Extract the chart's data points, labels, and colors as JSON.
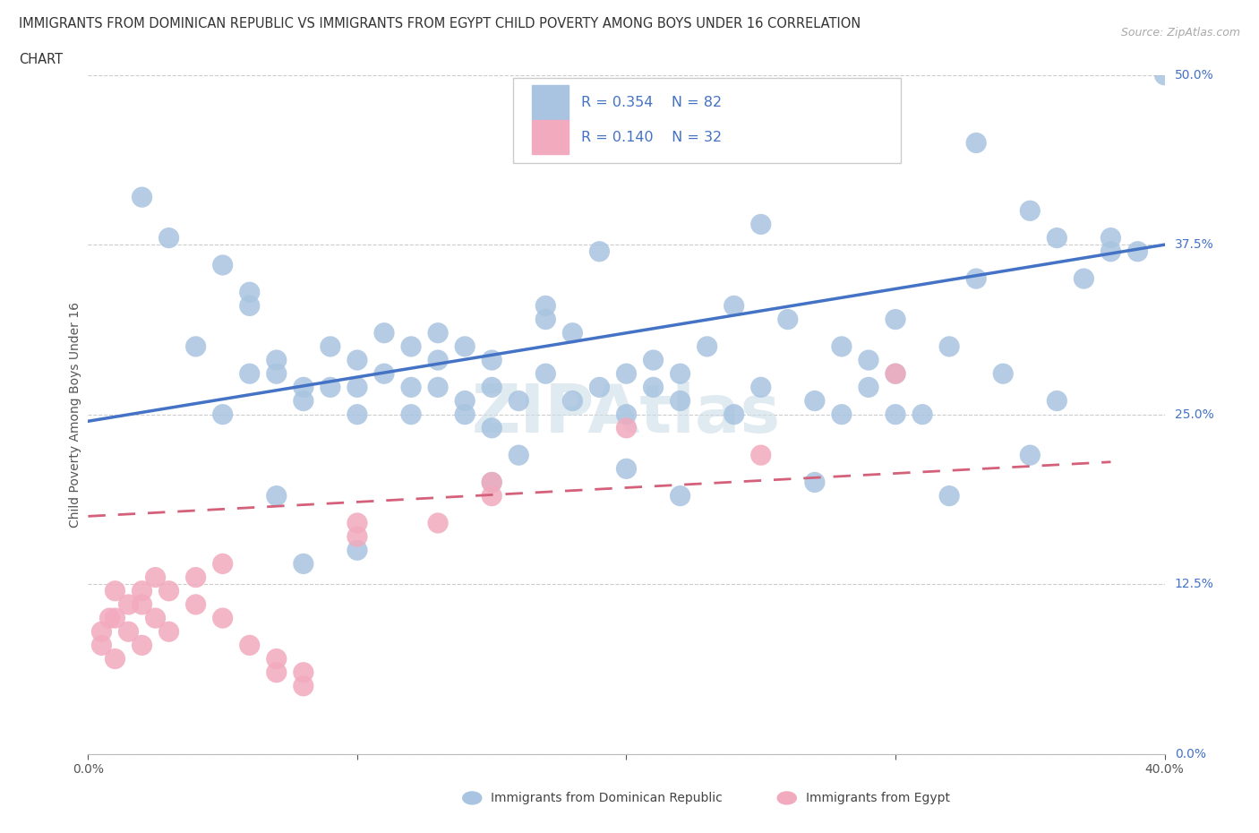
{
  "title_line1": "IMMIGRANTS FROM DOMINICAN REPUBLIC VS IMMIGRANTS FROM EGYPT CHILD POVERTY AMONG BOYS UNDER 16 CORRELATION",
  "title_line2": "CHART",
  "source": "Source: ZipAtlas.com",
  "ylabel": "Child Poverty Among Boys Under 16",
  "label_dr": "Immigrants from Dominican Republic",
  "label_eg": "Immigrants from Egypt",
  "R_dr": "0.354",
  "N_dr": "82",
  "R_eg": "0.140",
  "N_eg": "32",
  "xlim": [
    0.0,
    0.4
  ],
  "ylim": [
    0.0,
    0.5
  ],
  "ytick_vals": [
    0.0,
    0.125,
    0.25,
    0.375,
    0.5
  ],
  "ytick_labels": [
    "0.0%",
    "12.5%",
    "25.0%",
    "37.5%",
    "50.0%"
  ],
  "xtick_vals": [
    0.0,
    0.1,
    0.2,
    0.3,
    0.4
  ],
  "xtick_labels": [
    "0.0%",
    "",
    "",
    "",
    "40.0%"
  ],
  "color_dr": "#a8c4e0",
  "color_eg": "#f2aabe",
  "line_color_dr": "#4472c4",
  "line_color_eg": "#d4607a",
  "right_label_color": "#4472c4",
  "watermark_color": "#ccdde8",
  "dr_x": [
    0.02,
    0.03,
    0.04,
    0.05,
    0.06,
    0.06,
    0.07,
    0.07,
    0.08,
    0.08,
    0.09,
    0.09,
    0.1,
    0.1,
    0.11,
    0.11,
    0.12,
    0.12,
    0.12,
    0.13,
    0.13,
    0.14,
    0.14,
    0.15,
    0.15,
    0.15,
    0.16,
    0.17,
    0.17,
    0.18,
    0.18,
    0.19,
    0.2,
    0.2,
    0.21,
    0.21,
    0.22,
    0.22,
    0.23,
    0.24,
    0.25,
    0.26,
    0.27,
    0.28,
    0.29,
    0.3,
    0.3,
    0.31,
    0.32,
    0.33,
    0.34,
    0.35,
    0.36,
    0.37,
    0.38,
    0.39,
    0.4,
    0.33,
    0.15,
    0.22,
    0.27,
    0.32,
    0.1,
    0.05,
    0.08,
    0.28,
    0.35,
    0.2,
    0.13,
    0.07,
    0.17,
    0.24,
    0.29,
    0.06,
    0.19,
    0.14,
    0.25,
    0.36,
    0.1,
    0.3,
    0.38,
    0.16
  ],
  "dr_y": [
    0.41,
    0.38,
    0.3,
    0.36,
    0.34,
    0.33,
    0.29,
    0.28,
    0.26,
    0.27,
    0.27,
    0.3,
    0.29,
    0.27,
    0.28,
    0.31,
    0.25,
    0.27,
    0.3,
    0.29,
    0.31,
    0.26,
    0.3,
    0.24,
    0.27,
    0.29,
    0.26,
    0.33,
    0.28,
    0.26,
    0.31,
    0.27,
    0.25,
    0.28,
    0.27,
    0.29,
    0.26,
    0.28,
    0.3,
    0.25,
    0.27,
    0.32,
    0.26,
    0.3,
    0.29,
    0.28,
    0.32,
    0.25,
    0.3,
    0.35,
    0.28,
    0.4,
    0.38,
    0.35,
    0.38,
    0.37,
    0.5,
    0.45,
    0.2,
    0.19,
    0.2,
    0.19,
    0.15,
    0.25,
    0.14,
    0.25,
    0.22,
    0.21,
    0.27,
    0.19,
    0.32,
    0.33,
    0.27,
    0.28,
    0.37,
    0.25,
    0.39,
    0.26,
    0.25,
    0.25,
    0.37,
    0.22
  ],
  "eg_x": [
    0.005,
    0.005,
    0.008,
    0.01,
    0.01,
    0.01,
    0.015,
    0.015,
    0.02,
    0.02,
    0.02,
    0.025,
    0.025,
    0.03,
    0.03,
    0.04,
    0.04,
    0.05,
    0.05,
    0.06,
    0.07,
    0.07,
    0.08,
    0.08,
    0.1,
    0.1,
    0.13,
    0.15,
    0.15,
    0.2,
    0.25,
    0.3
  ],
  "eg_y": [
    0.08,
    0.09,
    0.1,
    0.07,
    0.1,
    0.12,
    0.09,
    0.11,
    0.08,
    0.11,
    0.12,
    0.1,
    0.13,
    0.09,
    0.12,
    0.11,
    0.13,
    0.1,
    0.14,
    0.08,
    0.06,
    0.07,
    0.05,
    0.06,
    0.16,
    0.17,
    0.17,
    0.19,
    0.2,
    0.24,
    0.22,
    0.28
  ],
  "eg_trend_x0": 0.0,
  "eg_trend_x1": 0.38,
  "eg_trend_y0": 0.175,
  "eg_trend_y1": 0.215,
  "dr_trend_x0": 0.0,
  "dr_trend_x1": 0.4,
  "dr_trend_y0": 0.245,
  "dr_trend_y1": 0.375
}
